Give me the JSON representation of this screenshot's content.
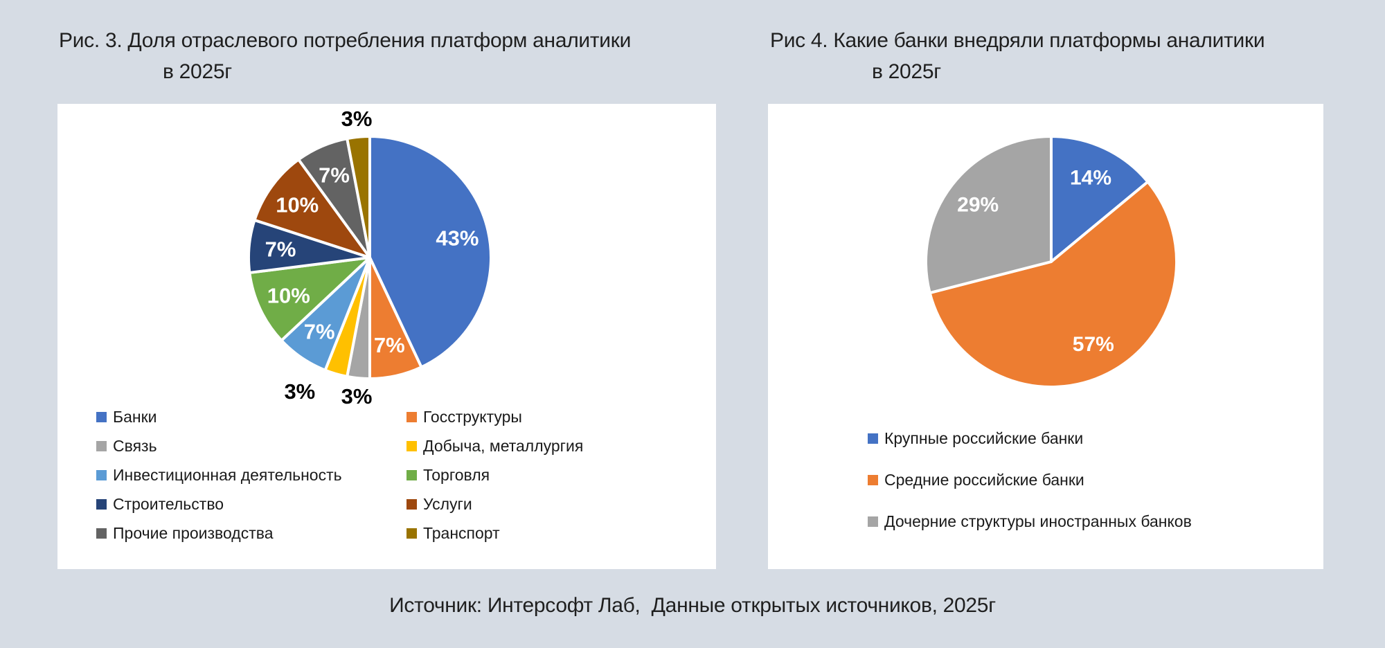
{
  "page": {
    "background": "#d6dce4",
    "panel_background": "#ffffff",
    "text_color": "#1f1f1f"
  },
  "figures": [
    {
      "id": "fig3",
      "title_line1": "Рис. 3. Доля отраслевого потребления платформ аналитики",
      "title_line2": "в 2025г"
    },
    {
      "id": "fig4",
      "title_line1": "Рис 4. Какие банки внедряли платформы аналитики",
      "title_line2": "в 2025г"
    }
  ],
  "footer": {
    "text": "Источник: Интерсофт Лаб,  Данные открытых источников, 2025г"
  },
  "chart_data": [
    {
      "type": "pie",
      "title": "Рис. 3. Доля отраслевого потребления платформ аналитики в 2025г",
      "start_angle_deg": 0,
      "direction": "clockwise",
      "legend_position": "bottom-two-columns",
      "slice_border_color": "#ffffff",
      "slices": [
        {
          "label": "Банки",
          "value": 43,
          "pct_label": "43%",
          "color": "#4472C4",
          "label_inside": true
        },
        {
          "label": "Госструктуры",
          "value": 7,
          "pct_label": "7%",
          "color": "#ED7D31",
          "label_inside": true
        },
        {
          "label": "Связь",
          "value": 3,
          "pct_label": "3%",
          "color": "#A5A5A5",
          "label_inside": false
        },
        {
          "label": "Добыча, металлургия",
          "value": 3,
          "pct_label": "3%",
          "color": "#FFC000",
          "label_inside": false,
          "label_dx": -45
        },
        {
          "label": "Инвестиционная деятельность",
          "value": 7,
          "pct_label": "7%",
          "color": "#5B9BD5",
          "label_inside": true
        },
        {
          "label": "Торговля",
          "value": 10,
          "pct_label": "10%",
          "color": "#70AD47",
          "label_inside": true
        },
        {
          "label": "Строительство",
          "value": 7,
          "pct_label": "7%",
          "color": "#264478",
          "label_inside": true
        },
        {
          "label": "Услуги",
          "value": 10,
          "pct_label": "10%",
          "color": "#9E480E",
          "label_inside": true
        },
        {
          "label": "Прочие производства",
          "value": 7,
          "pct_label": "7%",
          "color": "#636363",
          "label_inside": true
        },
        {
          "label": "Транспорт",
          "value": 3,
          "pct_label": "3%",
          "color": "#997300",
          "label_inside": false
        }
      ]
    },
    {
      "type": "pie",
      "title": "Рис 4. Какие банки внедряли платформы аналитики в 2025г",
      "start_angle_deg": 0,
      "direction": "clockwise",
      "legend_position": "bottom-single-column",
      "slice_border_color": "#ffffff",
      "slices": [
        {
          "label": "Крупные российские банки",
          "value": 14,
          "pct_label": "14%",
          "color": "#4472C4",
          "label_inside": true
        },
        {
          "label": "Средние российские банки",
          "value": 57,
          "pct_label": "57%",
          "color": "#ED7D31",
          "label_inside": true
        },
        {
          "label": "Дочерние структуры иностранных банков",
          "value": 29,
          "pct_label": "29%",
          "color": "#A5A5A5",
          "label_inside": true
        }
      ]
    }
  ]
}
